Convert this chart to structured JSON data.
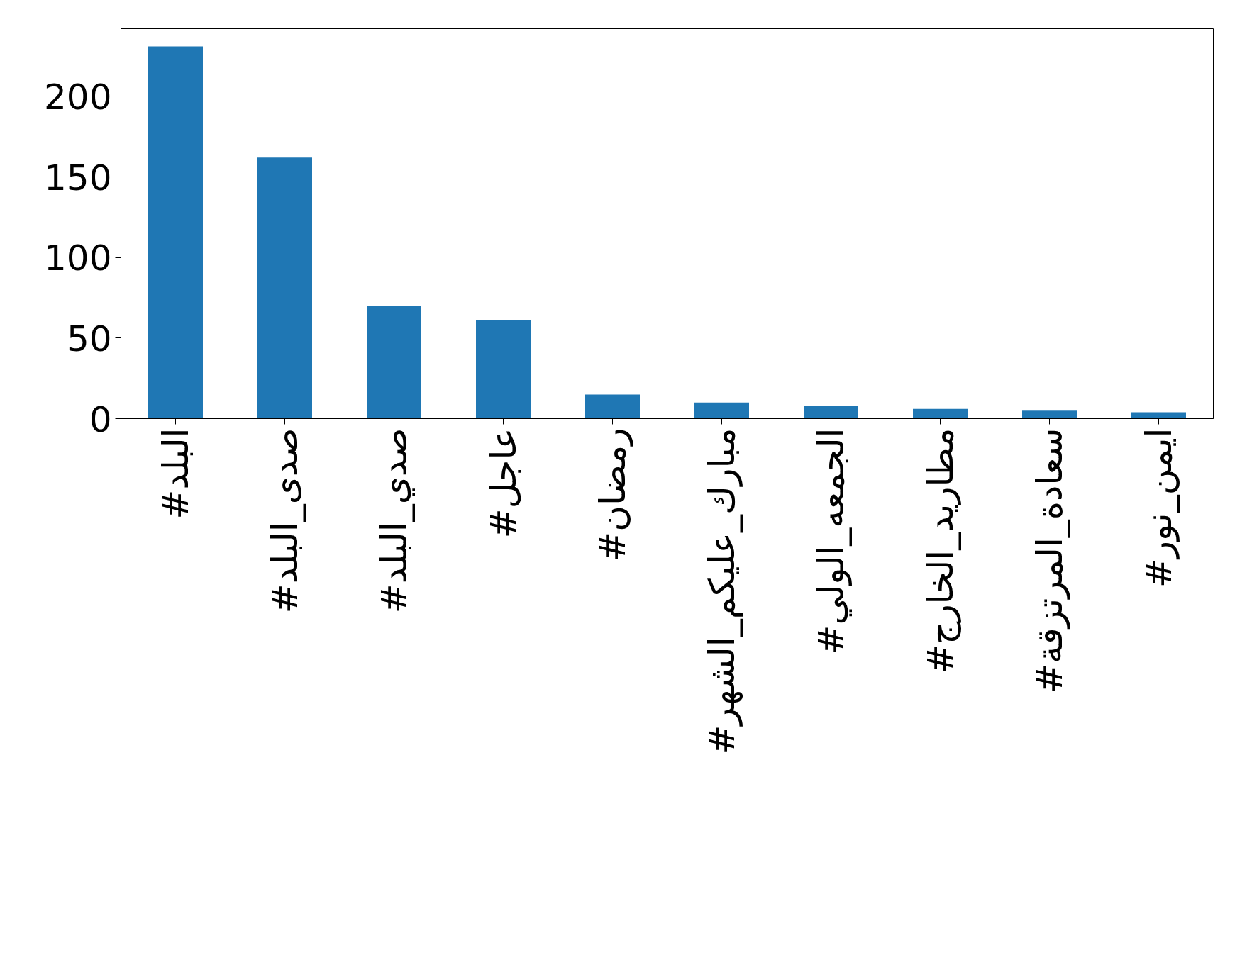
{
  "chart_data": {
    "type": "bar",
    "categories": [
      "#البلد",
      "#صدى_البلد",
      "#صدي_البلد",
      "#عاجل",
      "#رمضان",
      "#مبارك_عليكم_الشهر",
      "#الجمعه_الولي",
      "#مطاريد_الخارج",
      "#سعادة_المرتزقة",
      "#ايمن_نور"
    ],
    "values": [
      231,
      162,
      70,
      61,
      15,
      10,
      8,
      6,
      5,
      4
    ],
    "color": "#1f77b4",
    "ylim": [
      0,
      242
    ],
    "yticks": [
      0,
      50,
      100,
      150,
      200
    ],
    "grid": false
  }
}
